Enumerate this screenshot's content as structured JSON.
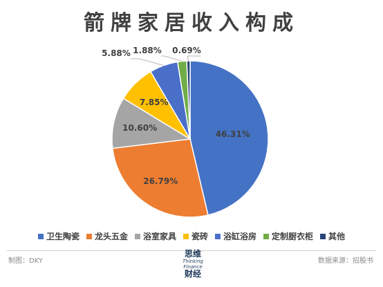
{
  "chart_data": {
    "type": "pie",
    "title": "箭牌家居收入构成",
    "categories": [
      "卫生陶瓷",
      "龙头五金",
      "浴室家具",
      "瓷砖",
      "浴缸浴房",
      "定制厨衣柜",
      "其他"
    ],
    "values": [
      46.31,
      26.79,
      10.6,
      7.85,
      5.88,
      1.88,
      0.69
    ],
    "data_labels": [
      "46.31%",
      "26.79%",
      "10.60%",
      "7.85%",
      "5.88%",
      "1.88%",
      "0.69%"
    ],
    "colors": [
      "#4472C4",
      "#ED7D31",
      "#A5A5A5",
      "#FFC000",
      "#4A6FC9",
      "#70AD47",
      "#264478"
    ],
    "legend_position": "bottom",
    "start_angle": "12 o'clock",
    "direction": "clockwise"
  },
  "footer": {
    "left": "制图：DKY",
    "right": "数据来源：招股书"
  },
  "logo": {
    "cn_top": "思维",
    "en_line1": "Thinking",
    "en_line2": "Finance",
    "cn_bottom": "财经"
  }
}
